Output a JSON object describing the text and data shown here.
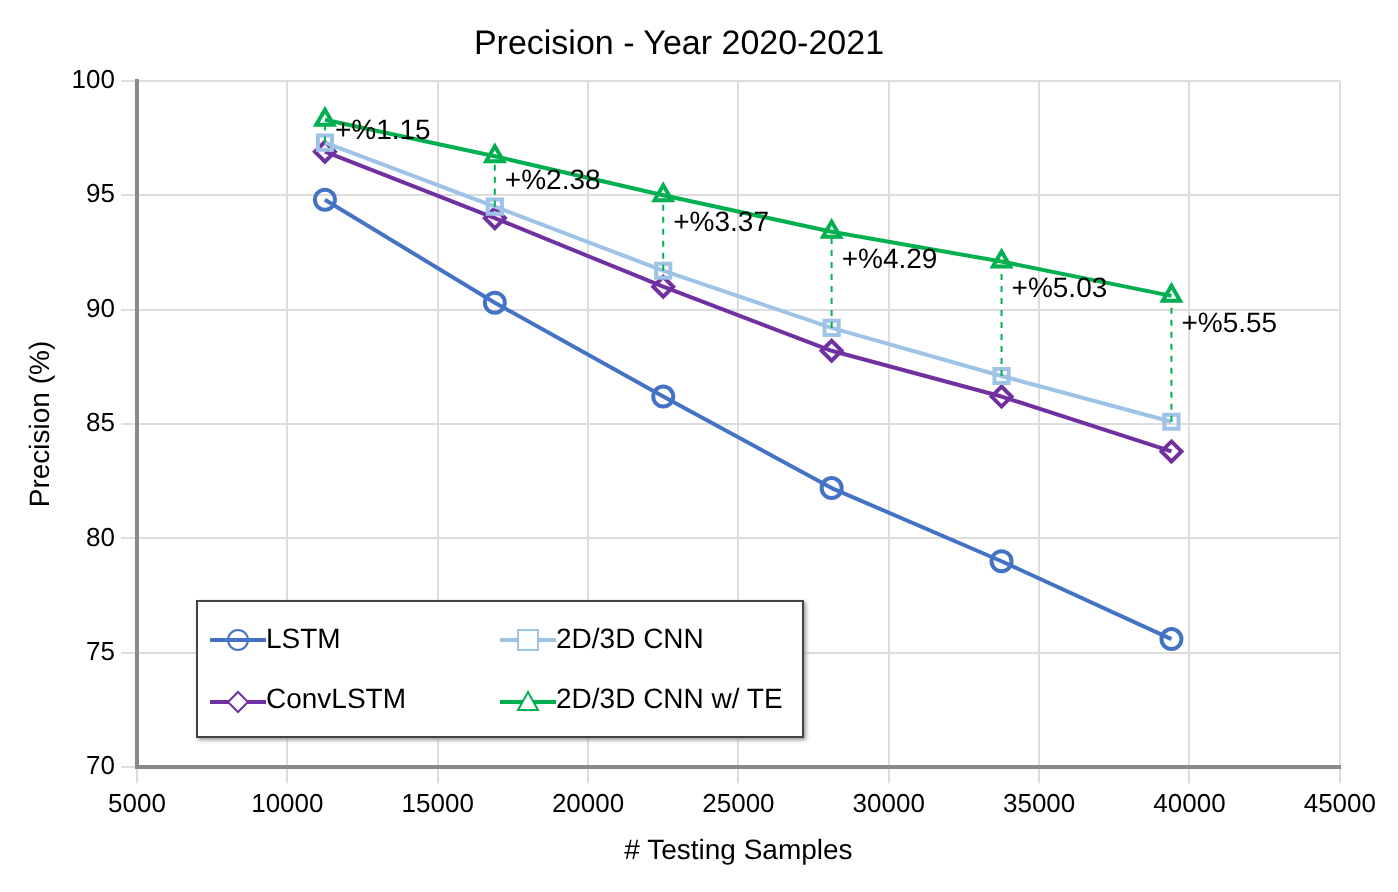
{
  "chart_data": {
    "type": "line",
    "title": "Precision - Year 2020-2021",
    "xlabel": "# Testing Samples",
    "ylabel": "Precision (%)",
    "x": [
      11250,
      16900,
      22500,
      28100,
      33750,
      39400
    ],
    "series": [
      {
        "name": "LSTM",
        "color": "#4472c4",
        "marker": "circle",
        "values": [
          94.8,
          90.3,
          86.2,
          82.2,
          79.0,
          75.6
        ]
      },
      {
        "name": "2D/3D CNN",
        "color": "#9dc3e6",
        "marker": "square",
        "values": [
          97.3,
          94.5,
          91.7,
          89.2,
          87.1,
          85.1
        ]
      },
      {
        "name": "ConvLSTM",
        "color": "#7030a0",
        "marker": "diamond",
        "values": [
          96.9,
          94.0,
          91.0,
          88.2,
          86.2,
          83.8
        ]
      },
      {
        "name": "2D/3D CNN w/ TE",
        "color": "#00b050",
        "marker": "triangle",
        "values": [
          98.3,
          96.7,
          95.0,
          93.4,
          92.1,
          90.6
        ]
      }
    ],
    "annotations": [
      {
        "text": "+%1.15",
        "x": 11250,
        "y": 98.3
      },
      {
        "text": "+%2.38",
        "x": 16900,
        "y": 96.7
      },
      {
        "text": "+%3.37",
        "x": 22500,
        "y": 95.0
      },
      {
        "text": "+%4.29",
        "x": 28100,
        "y": 93.4
      },
      {
        "text": "+%5.03",
        "x": 33750,
        "y": 92.1
      },
      {
        "text": "+%5.55",
        "x": 39400,
        "y": 90.6
      }
    ],
    "xlim": [
      5000,
      45000
    ],
    "xticks": [
      5000,
      10000,
      15000,
      20000,
      25000,
      30000,
      35000,
      40000,
      45000
    ],
    "ylim": [
      70,
      100
    ],
    "yticks": [
      70,
      75,
      80,
      85,
      90,
      95,
      100
    ],
    "grid": true,
    "legend": "bottom left",
    "line_style": "solid"
  }
}
